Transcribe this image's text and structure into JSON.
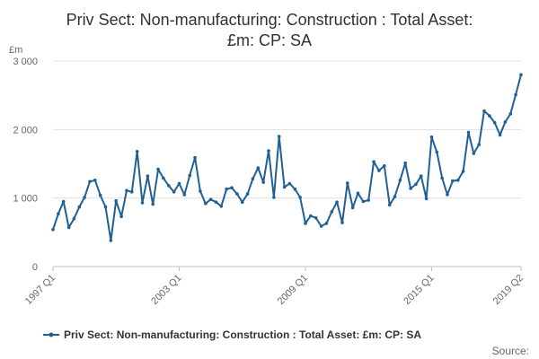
{
  "chart_data": {
    "type": "line",
    "title": [
      "Priv Sect: Non-manufacturing: Construction : Total Asset:",
      "£m: CP: SA"
    ],
    "ylabel": "£m",
    "ylim": [
      0,
      3000
    ],
    "yticks": [
      0,
      1000,
      2000,
      3000
    ],
    "ytick_labels": [
      "0",
      "1 000",
      "2 000",
      "3 000"
    ],
    "xtick_labels": [
      "1997 Q1",
      "2003 Q1",
      "2009 Q1",
      "2015 Q1",
      "2019 Q2"
    ],
    "xtick_indices": [
      0,
      24,
      48,
      72,
      89
    ],
    "grid": "horizontal",
    "legend_position": "bottom",
    "color": "#206095",
    "source_label": "Source:",
    "series": [
      {
        "name": "Priv Sect: Non-manufacturing: Construction : Total Asset: £m: CP: SA",
        "categories": [
          "1997 Q1",
          "1997 Q2",
          "1997 Q3",
          "1997 Q4",
          "1998 Q1",
          "1998 Q2",
          "1998 Q3",
          "1998 Q4",
          "1999 Q1",
          "1999 Q2",
          "1999 Q3",
          "1999 Q4",
          "2000 Q1",
          "2000 Q2",
          "2000 Q3",
          "2000 Q4",
          "2001 Q1",
          "2001 Q2",
          "2001 Q3",
          "2001 Q4",
          "2002 Q1",
          "2002 Q2",
          "2002 Q3",
          "2002 Q4",
          "2003 Q1",
          "2003 Q2",
          "2003 Q3",
          "2003 Q4",
          "2004 Q1",
          "2004 Q2",
          "2004 Q3",
          "2004 Q4",
          "2005 Q1",
          "2005 Q2",
          "2005 Q3",
          "2005 Q4",
          "2006 Q1",
          "2006 Q2",
          "2006 Q3",
          "2006 Q4",
          "2007 Q1",
          "2007 Q2",
          "2007 Q3",
          "2007 Q4",
          "2008 Q1",
          "2008 Q2",
          "2008 Q3",
          "2008 Q4",
          "2009 Q1",
          "2009 Q2",
          "2009 Q3",
          "2009 Q4",
          "2010 Q1",
          "2010 Q2",
          "2010 Q3",
          "2010 Q4",
          "2011 Q1",
          "2011 Q2",
          "2011 Q3",
          "2011 Q4",
          "2012 Q1",
          "2012 Q2",
          "2012 Q3",
          "2012 Q4",
          "2013 Q1",
          "2013 Q2",
          "2013 Q3",
          "2013 Q4",
          "2014 Q1",
          "2014 Q2",
          "2014 Q3",
          "2014 Q4",
          "2015 Q1",
          "2015 Q2",
          "2015 Q3",
          "2015 Q4",
          "2016 Q1",
          "2016 Q2",
          "2016 Q3",
          "2016 Q4",
          "2017 Q1",
          "2017 Q2",
          "2017 Q3",
          "2017 Q4",
          "2018 Q1",
          "2018 Q2",
          "2018 Q3",
          "2018 Q4",
          "2019 Q1",
          "2019 Q2"
        ],
        "values": [
          540,
          770,
          950,
          570,
          700,
          870,
          1010,
          1240,
          1260,
          1040,
          870,
          380,
          960,
          730,
          1110,
          1090,
          1680,
          930,
          1320,
          910,
          1420,
          1290,
          1180,
          1090,
          1210,
          1050,
          1330,
          1590,
          1100,
          920,
          980,
          940,
          880,
          1130,
          1150,
          1060,
          940,
          1060,
          1280,
          1440,
          1230,
          1690,
          1010,
          1900,
          1160,
          1210,
          1130,
          1010,
          630,
          740,
          710,
          590,
          630,
          800,
          940,
          640,
          1220,
          860,
          1070,
          950,
          970,
          1530,
          1400,
          1470,
          900,
          1020,
          1260,
          1510,
          1140,
          1200,
          1320,
          990,
          1890,
          1670,
          1290,
          1050,
          1250,
          1260,
          1390,
          1960,
          1650,
          1780,
          2270,
          2200,
          2100,
          1920,
          2110,
          2230,
          2510,
          2800
        ]
      }
    ]
  }
}
